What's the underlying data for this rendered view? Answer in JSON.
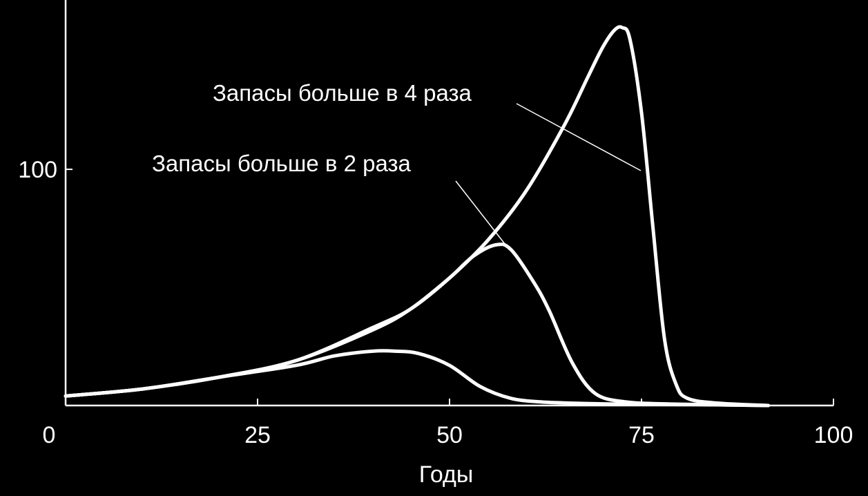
{
  "chart_data": {
    "type": "line",
    "title": "",
    "xlabel": "Годы",
    "ylabel": "",
    "xlim": [
      0,
      100
    ],
    "ylim": [
      0,
      160
    ],
    "grid": false,
    "legend": "none",
    "x_ticks": [
      {
        "value": 0,
        "label": "0"
      },
      {
        "value": 25,
        "label": "25"
      },
      {
        "value": 50,
        "label": "50"
      },
      {
        "value": 75,
        "label": "75"
      },
      {
        "value": 100,
        "label": "100"
      }
    ],
    "y_ticks": [
      {
        "value": 100,
        "label": "100"
      }
    ],
    "line_color": "#ffffff",
    "background": "#000000",
    "series": [
      {
        "x": [
          0,
          10,
          20,
          30,
          35,
          40,
          43,
          46,
          50,
          54,
          58,
          62,
          66,
          70,
          75,
          80,
          85,
          91.5
        ],
        "y": [
          4,
          7,
          12,
          17,
          21,
          23,
          23,
          22,
          17,
          8,
          3,
          1.5,
          1,
          0.7,
          0.5,
          0.4,
          0.3,
          0
        ]
      },
      {
        "x": [
          0,
          10,
          20,
          30,
          40,
          45,
          50,
          53,
          56,
          58,
          61,
          63,
          66,
          69,
          73,
          78,
          85,
          91.5
        ],
        "y": [
          4,
          7,
          12,
          19,
          32,
          41,
          54,
          63,
          68,
          66,
          52,
          40,
          18,
          5,
          1.5,
          0.7,
          0.3,
          0
        ]
      },
      {
        "x": [
          0,
          10,
          20,
          30,
          40,
          45,
          50,
          55,
          60,
          65,
          68,
          70,
          71.5,
          72.5,
          73.5,
          75,
          76.5,
          78,
          79.5,
          81,
          85,
          91.5
        ],
        "y": [
          4,
          7,
          12,
          19,
          33,
          41,
          54,
          70,
          91,
          119,
          139,
          152,
          159,
          160,
          155,
          124,
          75,
          28,
          9,
          3,
          1,
          0
        ]
      }
    ],
    "annotations": [
      {
        "text": "Запасы больше в 4 раза",
        "x": 75,
        "y": 105
      },
      {
        "text": "Запасы больше в 2 раза",
        "x": 57,
        "y": 69
      }
    ]
  }
}
